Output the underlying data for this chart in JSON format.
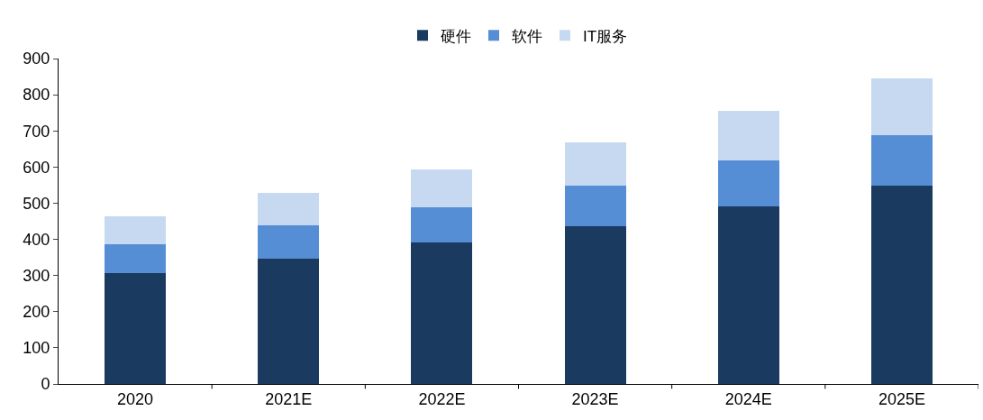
{
  "chart_data": {
    "type": "bar",
    "stacked": true,
    "categories": [
      "2020",
      "2021E",
      "2022E",
      "2023E",
      "2024E",
      "2025E"
    ],
    "series": [
      {
        "name": "硬件",
        "color": "#1a3a5f",
        "values": [
          307,
          347,
          392,
          436,
          491,
          549
        ]
      },
      {
        "name": "软件",
        "color": "#558ed5",
        "values": [
          79,
          92,
          97,
          113,
          127,
          139
        ]
      },
      {
        "name": "IT服务",
        "color": "#c6d9f0",
        "values": [
          78,
          90,
          105,
          119,
          138,
          157
        ]
      }
    ],
    "ylim": [
      0,
      900
    ],
    "yticks": [
      0,
      100,
      200,
      300,
      400,
      500,
      600,
      700,
      800,
      900
    ],
    "grid": false,
    "legend": "top"
  }
}
